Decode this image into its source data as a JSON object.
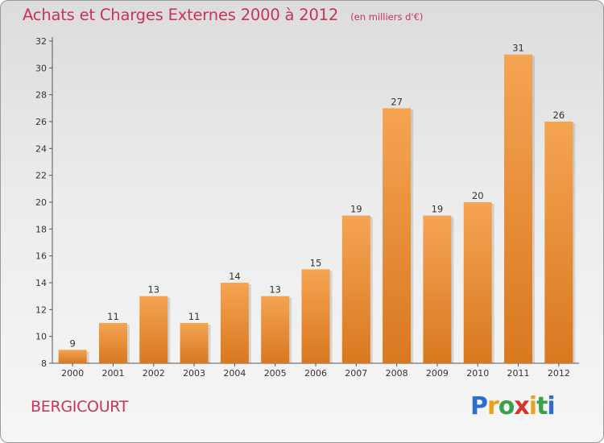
{
  "header": {
    "title": "Achats et Charges Externes 2000 à 2012",
    "subtitle": "(en milliers d'€)"
  },
  "footer": {
    "commune": "BERGICOURT",
    "logo_letters": [
      "P",
      "r",
      "o",
      "x",
      "i",
      "t",
      "i"
    ],
    "logo_colors": [
      "#2c6fcf",
      "#e5a41c",
      "#3aa14b",
      "#d8322a",
      "#e5a41c",
      "#3aa14b",
      "#2c6fcf"
    ]
  },
  "colors": {
    "title": "#c8335a",
    "bar_light": "#f5a452",
    "bar_dark": "#d9781f"
  },
  "chart_data": {
    "type": "bar",
    "categories": [
      "2000",
      "2001",
      "2002",
      "2003",
      "2004",
      "2005",
      "2006",
      "2007",
      "2008",
      "2009",
      "2010",
      "2011",
      "2012"
    ],
    "values": [
      9,
      11,
      13,
      11,
      14,
      13,
      15,
      19,
      27,
      19,
      20,
      31,
      26
    ],
    "ylim": [
      8,
      32
    ],
    "yticks": [
      8,
      10,
      12,
      14,
      16,
      18,
      20,
      22,
      24,
      26,
      28,
      30,
      32
    ],
    "grid": false,
    "legend": "none"
  }
}
